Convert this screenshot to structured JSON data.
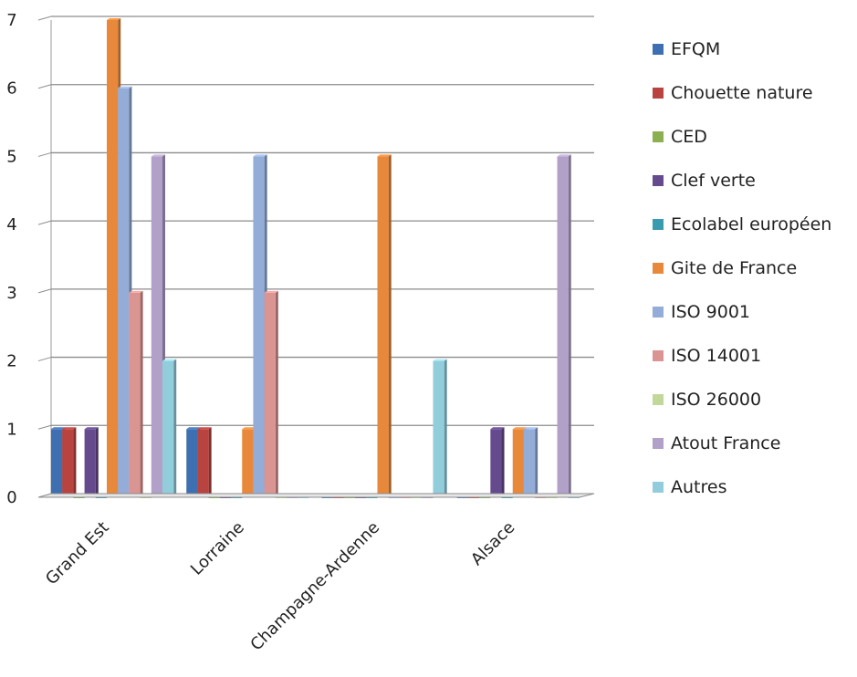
{
  "chart_data": {
    "type": "bar",
    "categories": [
      "Grand Est",
      "Lorraine",
      "Champagne-Ardenne",
      "Alsace"
    ],
    "ylim": [
      0,
      7
    ],
    "yticks": [
      0,
      1,
      2,
      3,
      4,
      5,
      6,
      7
    ],
    "grid": true,
    "legend_position": "right",
    "series": [
      {
        "name": "EFQM",
        "color": "#3e6fb0",
        "values": [
          1,
          1,
          0,
          0
        ]
      },
      {
        "name": "Chouette nature",
        "color": "#b8433f",
        "values": [
          1,
          1,
          0,
          0
        ]
      },
      {
        "name": "CED",
        "color": "#8cb050",
        "values": [
          0,
          0,
          0,
          0
        ]
      },
      {
        "name": "Clef verte",
        "color": "#654a8e",
        "values": [
          1,
          0,
          0,
          1
        ]
      },
      {
        "name": "Ecolabel européen",
        "color": "#3a9bb0",
        "values": [
          0,
          0,
          0,
          0
        ]
      },
      {
        "name": "Gite de France",
        "color": "#e8883a",
        "values": [
          7,
          1,
          5,
          1
        ]
      },
      {
        "name": "ISO 9001",
        "color": "#93acd8",
        "values": [
          6,
          5,
          0,
          1
        ]
      },
      {
        "name": "ISO 14001",
        "color": "#da9593",
        "values": [
          3,
          3,
          0,
          0
        ]
      },
      {
        "name": "ISO 26000",
        "color": "#c2d89a",
        "values": [
          0,
          0,
          0,
          0
        ]
      },
      {
        "name": "Atout France",
        "color": "#b1a0c8",
        "values": [
          5,
          0,
          0,
          5
        ]
      },
      {
        "name": "Autres",
        "color": "#92cddc",
        "values": [
          2,
          0,
          2,
          0
        ]
      }
    ]
  }
}
